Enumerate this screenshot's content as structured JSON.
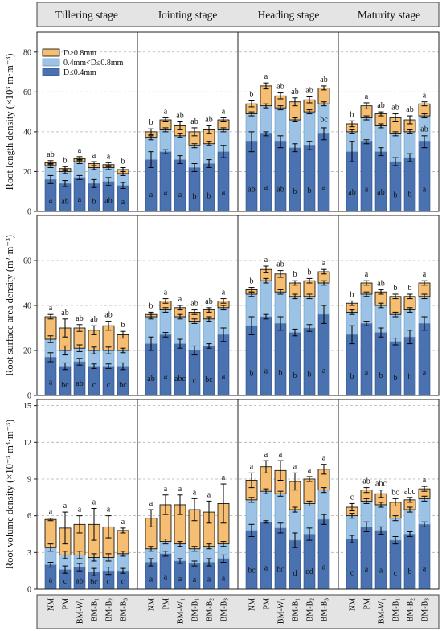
{
  "colors": {
    "bottom": "#4a72b0",
    "middle": "#9cc3e6",
    "top": "#f6be72",
    "panel_bg": "#e4e4e4",
    "grid": "#b0b0b0"
  },
  "stages": [
    "Tillering stage",
    "Jointing stage",
    "Heading stage",
    "Maturity stage"
  ],
  "treatments": [
    {
      "base": "NM",
      "sub": ""
    },
    {
      "base": "PM",
      "sub": ""
    },
    {
      "base": "BM-W",
      "sub": "1"
    },
    {
      "base": "BM-B",
      "sub": "1"
    },
    {
      "base": "BM-B",
      "sub": "2"
    },
    {
      "base": "BM-B",
      "sub": "3"
    }
  ],
  "chart_data": [
    {
      "type": "bar",
      "stacked": true,
      "ylabel": "Root length density (×10³ m·m⁻³)",
      "ylim": [
        0,
        90
      ],
      "yticks": [
        0,
        20,
        40,
        60,
        80
      ],
      "ytick_labels": [
        "0",
        "20",
        "40",
        "60",
        "80"
      ],
      "grid": true,
      "legend": {
        "position": "top-left",
        "entries": [
          "D>0.8mm",
          "0.4mm<D≤0.8mm",
          "D≤0.4mm"
        ]
      },
      "groups": [
        {
          "stage": "Tillering stage",
          "bottom": [
            16,
            14,
            17,
            14,
            15,
            13
          ],
          "bottom_err": [
            2,
            1.5,
            1,
            2,
            2,
            1.5
          ],
          "mid": [
            7,
            6,
            8,
            8,
            7,
            6
          ],
          "mid_err": [
            1,
            1,
            1,
            1,
            1,
            1
          ],
          "top": [
            1.5,
            1.5,
            1.5,
            2,
            1.5,
            2
          ],
          "top_err": [
            1,
            1,
            1,
            1,
            1,
            1
          ],
          "bottom_letters": [
            "a",
            "ab",
            "a",
            "b",
            "ab",
            "a"
          ],
          "mid_letters": [
            "",
            "",
            "",
            "",
            "",
            ""
          ],
          "top_letters": [
            "ab",
            "b",
            "a",
            "a",
            "a",
            "b"
          ]
        },
        {
          "stage": "Jointing stage",
          "bottom": [
            26,
            30,
            26,
            22,
            24,
            30
          ],
          "bottom_err": [
            4,
            1,
            2,
            2,
            2,
            3
          ],
          "mid": [
            11,
            11,
            12,
            11,
            10,
            11
          ],
          "mid_err": [
            1,
            1,
            1,
            1,
            1,
            1
          ],
          "top": [
            3,
            5,
            5,
            7,
            7,
            5
          ],
          "top_err": [
            1.5,
            1,
            2,
            2,
            2,
            1
          ],
          "bottom_letters": [
            "a",
            "a",
            "a",
            "b",
            "b",
            "a"
          ],
          "mid_letters": [
            "",
            "",
            "",
            "",
            "",
            ""
          ],
          "top_letters": [
            "b",
            "a",
            "ab",
            "ab",
            "ab",
            "a"
          ]
        },
        {
          "stage": "Heading stage",
          "bottom": [
            35,
            39,
            35,
            32,
            33,
            39
          ],
          "bottom_err": [
            5,
            1,
            3,
            2,
            2,
            3
          ],
          "mid": [
            14,
            14,
            17,
            14,
            17,
            15
          ],
          "mid_err": [
            1,
            1,
            1,
            1,
            1,
            1
          ],
          "top": [
            5,
            10,
            6,
            9,
            6,
            8
          ],
          "top_err": [
            1.5,
            1.5,
            1.5,
            2,
            1.5,
            1
          ],
          "bottom_letters": [
            "ab",
            "a",
            "ab",
            "b",
            "b",
            "a"
          ],
          "mid_letters": [
            "",
            "",
            "",
            "",
            "",
            "bc"
          ],
          "top_letters": [
            "b",
            "a",
            "ab",
            "ab",
            "ab",
            "ab"
          ]
        },
        {
          "stage": "Maturity stage",
          "bottom": [
            30,
            35,
            30,
            25,
            27,
            35
          ],
          "bottom_err": [
            5,
            1,
            2,
            2,
            2,
            3
          ],
          "mid": [
            10,
            12,
            13,
            14,
            13,
            13
          ],
          "mid_err": [
            1,
            1,
            1,
            1,
            1,
            1
          ],
          "top": [
            4,
            6,
            6,
            8,
            6,
            6
          ],
          "top_err": [
            1.5,
            1.5,
            1,
            2,
            2,
            1
          ],
          "bottom_letters": [
            "ab",
            "a",
            "ab",
            "b",
            "b",
            "a"
          ],
          "mid_letters": [
            "",
            "",
            "",
            "",
            "",
            "ab"
          ],
          "top_letters": [
            "b",
            "a",
            "ab",
            "ab",
            "ab",
            "a"
          ]
        }
      ]
    },
    {
      "type": "bar",
      "stacked": true,
      "ylabel": "Root surface area density (m²·m⁻³)",
      "ylim": [
        0,
        80
      ],
      "yticks": [
        0,
        20,
        40,
        60
      ],
      "ytick_labels": [
        "0",
        "20",
        "40",
        "60"
      ],
      "grid": true,
      "groups": [
        {
          "stage": "Tillering stage",
          "bottom": [
            17,
            13,
            15,
            13,
            13,
            13
          ],
          "bottom_err": [
            2,
            1.5,
            1.5,
            1,
            1,
            1.5
          ],
          "mid": [
            8,
            7,
            6,
            7,
            7,
            7
          ],
          "mid_err": [
            1.5,
            2,
            1.5,
            1.5,
            1.5,
            1
          ],
          "top": [
            10,
            10,
            9,
            9,
            11,
            7
          ],
          "top_err": [
            1,
            4,
            1.5,
            2,
            2,
            1.5
          ],
          "bottom_letters": [
            "a",
            "bc",
            "ab",
            "c",
            "c",
            "bc"
          ],
          "mid_letters": [
            "",
            "",
            "",
            "",
            "",
            ""
          ],
          "top_letters": [
            "a",
            "ab",
            "ab",
            "ab",
            "ab",
            "b"
          ]
        },
        {
          "stage": "Jointing stage",
          "bottom": [
            23,
            27,
            23,
            20,
            22,
            27
          ],
          "bottom_err": [
            3,
            1,
            2,
            2,
            1,
            3
          ],
          "mid": [
            12,
            11,
            12,
            13,
            12,
            12
          ],
          "mid_err": [
            1,
            1,
            1,
            1,
            1,
            1
          ],
          "top": [
            1,
            4,
            4,
            4,
            4,
            3
          ],
          "top_err": [
            1,
            1,
            1,
            1,
            1,
            1
          ],
          "bottom_letters": [
            "ab",
            "a",
            "abc",
            "c",
            "bc",
            "a"
          ],
          "mid_letters": [
            "",
            "",
            "",
            "",
            "",
            ""
          ],
          "top_letters": [
            "b",
            "a",
            "a",
            "ab",
            "ab",
            "a"
          ]
        },
        {
          "stage": "Heading stage",
          "bottom": [
            31,
            35,
            32,
            28,
            30,
            36
          ],
          "bottom_err": [
            4,
            1,
            3,
            1.5,
            1.5,
            4
          ],
          "mid": [
            14,
            16,
            14,
            16,
            14,
            14
          ],
          "mid_err": [
            1,
            1,
            1,
            1,
            1,
            1
          ],
          "top": [
            2,
            5,
            8,
            6,
            7,
            5
          ],
          "top_err": [
            1,
            1.5,
            1.5,
            1,
            1,
            1
          ],
          "bottom_letters": [
            "b",
            "a",
            "b",
            "b",
            "b",
            "a"
          ],
          "mid_letters": [
            "",
            "",
            "",
            "",
            "",
            ""
          ],
          "top_letters": [
            "b",
            "a",
            "ab",
            "b",
            "b",
            "a"
          ]
        },
        {
          "stage": "Maturity stage",
          "bottom": [
            27,
            32,
            28,
            24,
            26,
            32
          ],
          "bottom_err": [
            4,
            1,
            2,
            1.5,
            3,
            3
          ],
          "mid": [
            10,
            13,
            12,
            12,
            12,
            12
          ],
          "mid_err": [
            1,
            1,
            1,
            1,
            1,
            1
          ],
          "top": [
            4,
            5,
            6,
            8,
            6,
            6
          ],
          "top_err": [
            1,
            1,
            1,
            1,
            1,
            1
          ],
          "bottom_letters": [
            "b",
            "a",
            "b",
            "b",
            "b",
            "a"
          ],
          "mid_letters": [
            "",
            "",
            "",
            "",
            "",
            ""
          ],
          "top_letters": [
            "b",
            "a",
            "ab",
            "b",
            "b",
            "a"
          ]
        }
      ]
    },
    {
      "type": "bar",
      "stacked": true,
      "ylabel": "Root volume density (×10⁻³ m³·m⁻³)",
      "ylim": [
        0,
        15.5
      ],
      "yticks": [
        0,
        3,
        6,
        9,
        12,
        15
      ],
      "ytick_labels": [
        "0",
        "3",
        "6",
        "9",
        "12",
        "15"
      ],
      "grid": true,
      "groups": [
        {
          "stage": "Tillering stage",
          "bottom": [
            2.0,
            1.6,
            1.8,
            1.4,
            1.5,
            1.5
          ],
          "bottom_err": [
            0.2,
            0.3,
            0.3,
            0.3,
            0.3,
            0.2
          ],
          "mid": [
            1.4,
            1.2,
            1.0,
            1.2,
            1.1,
            1.4
          ],
          "mid_err": [
            0.3,
            0.3,
            0.3,
            0.3,
            0.3,
            0.2
          ],
          "top": [
            2.3,
            2.2,
            2.5,
            2.7,
            2.5,
            1.9
          ],
          "top_err": [
            0.1,
            1.3,
            0.7,
            1.3,
            0.9,
            0.2
          ],
          "bottom_letters": [
            "a",
            "c",
            "ab",
            "bc",
            "c",
            "c"
          ],
          "mid_letters": [
            "",
            "",
            "",
            "",
            "",
            ""
          ],
          "top_letters": [
            "a",
            "a",
            "a",
            "a",
            "a",
            "a"
          ]
        },
        {
          "stage": "Jointing stage",
          "bottom": [
            2.2,
            2.9,
            2.3,
            2.1,
            2.2,
            2.5
          ],
          "bottom_err": [
            0.3,
            0.2,
            0.2,
            0.2,
            0.3,
            0.3
          ],
          "mid": [
            1.1,
            1.0,
            1.4,
            1.2,
            1.3,
            1.2
          ],
          "mid_err": [
            0.2,
            0.2,
            0.2,
            0.2,
            0.2,
            0.2
          ],
          "top": [
            2.5,
            3.0,
            3.2,
            3.2,
            2.8,
            3.3
          ],
          "top_err": [
            0.7,
            0.8,
            0.8,
            0.9,
            0.9,
            1.6
          ],
          "bottom_letters": [
            "a",
            "a",
            "a",
            "a",
            "a",
            "a"
          ],
          "mid_letters": [
            "",
            "",
            "",
            "",
            "",
            ""
          ],
          "top_letters": [
            "a",
            "a",
            "a",
            "a",
            "a",
            "a"
          ]
        },
        {
          "stage": "Heading stage",
          "bottom": [
            4.8,
            5.5,
            5.0,
            4.0,
            4.5,
            5.7
          ],
          "bottom_err": [
            0.5,
            0.1,
            0.4,
            0.6,
            0.5,
            0.4
          ],
          "mid": [
            2.5,
            2.5,
            2.8,
            2.5,
            2.5,
            2.4
          ],
          "mid_err": [
            0.2,
            0.2,
            0.2,
            0.2,
            0.2,
            0.2
          ],
          "top": [
            1.6,
            2.0,
            1.9,
            2.3,
            2.0,
            1.7
          ],
          "top_err": [
            0.6,
            0.5,
            0.8,
            0.7,
            0.2,
            0.4
          ],
          "bottom_letters": [
            "bc",
            "a",
            "bc",
            "d",
            "cd",
            "a"
          ],
          "mid_letters": [
            "",
            "",
            "",
            "",
            "",
            ""
          ],
          "top_letters": [
            "a",
            "a",
            "a",
            "a",
            "a",
            "a"
          ]
        },
        {
          "stage": "Maturity stage",
          "bottom": [
            4.1,
            5.1,
            4.8,
            4.0,
            4.5,
            5.3
          ],
          "bottom_err": [
            0.3,
            0.4,
            0.3,
            0.3,
            0.2,
            0.2
          ],
          "mid": [
            1.9,
            2.1,
            2.1,
            1.8,
            2.0,
            2.1
          ],
          "mid_err": [
            0.2,
            0.2,
            0.2,
            0.2,
            0.2,
            0.2
          ],
          "top": [
            0.7,
            0.9,
            0.9,
            1.3,
            0.8,
            0.8
          ],
          "top_err": [
            0.3,
            0.2,
            0.3,
            0.3,
            0.2,
            0.2
          ],
          "bottom_letters": [
            "c",
            "a",
            "a",
            "c",
            "b",
            "a"
          ],
          "mid_letters": [
            "",
            "",
            "",
            "",
            "",
            ""
          ],
          "top_letters": [
            "c",
            "ab",
            "abc",
            "bc",
            "abc",
            "a"
          ]
        }
      ]
    }
  ]
}
